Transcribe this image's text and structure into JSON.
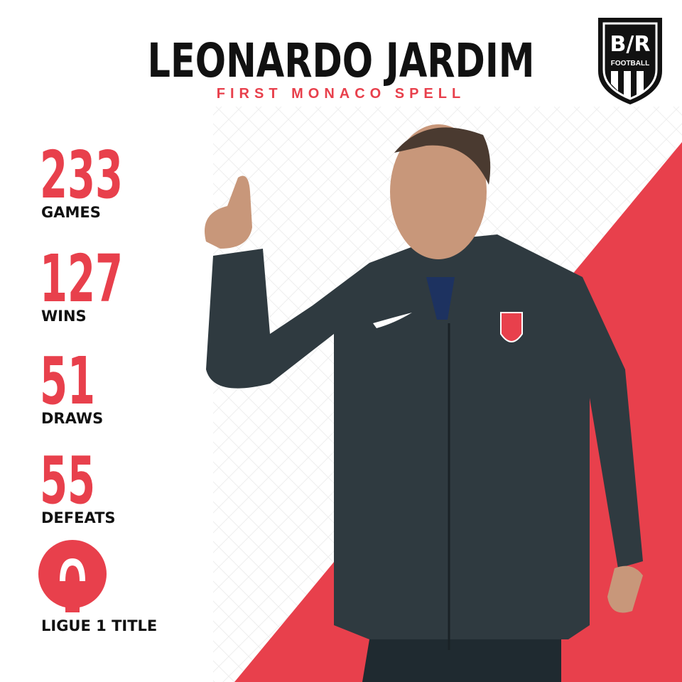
{
  "header": {
    "title": "LEONARDO JARDIM",
    "subtitle": "FIRST MONACO SPELL"
  },
  "logo": {
    "mark": "B/R",
    "sub": "FOOTBALL"
  },
  "stats": [
    {
      "number": 233,
      "label": "GAMES"
    },
    {
      "number": 127,
      "label": "WINS"
    },
    {
      "number": 51,
      "label": "DRAWS"
    },
    {
      "number": 55,
      "label": "DEFEATS"
    }
  ],
  "trophy": {
    "label": "LIGUE 1 TITLE"
  }
}
